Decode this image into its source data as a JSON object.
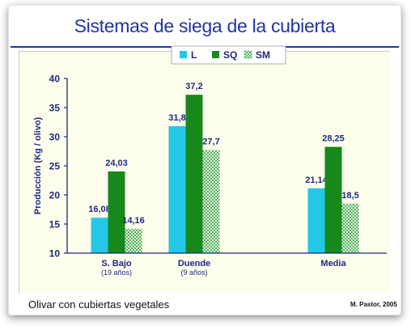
{
  "title": "Sistemas de siega de la cubierta",
  "footer_caption": "Olivar con cubiertas vegetales",
  "footer_credit": "M. Pastor, 2005",
  "colors": {
    "L": "#22c8e6",
    "SQ": "#16891a",
    "SM": "#7fcf84",
    "axis": "#1e2a80",
    "labels": "#1e2a80",
    "panel": "#fdfdec"
  },
  "chart_data": {
    "type": "bar",
    "title": "Sistemas de siega de la cubierta",
    "ylabel": "Producción (Kg / olivo)",
    "xlabel": "",
    "ylim": [
      10,
      40
    ],
    "yticks": [
      10,
      15,
      20,
      25,
      30,
      35,
      40
    ],
    "grid": false,
    "legend_position": "top-right",
    "categories": [
      {
        "label": "S. Bajo",
        "sublabel": "(19 años)"
      },
      {
        "label": "Duende",
        "sublabel": "(9 años)"
      },
      {
        "label": "Media",
        "sublabel": ""
      }
    ],
    "series": [
      {
        "name": "L",
        "pattern": "solid",
        "values": [
          16.08,
          31.8,
          21.14
        ],
        "value_labels": [
          "16,08",
          "31,8",
          "21,14"
        ]
      },
      {
        "name": "SQ",
        "pattern": "solid",
        "values": [
          24.03,
          37.2,
          28.25
        ],
        "value_labels": [
          "24,03",
          "37,2",
          "28,25"
        ]
      },
      {
        "name": "SM",
        "pattern": "checker",
        "values": [
          14.16,
          27.7,
          18.5
        ],
        "value_labels": [
          "14,16",
          "27,7",
          "18,5"
        ]
      }
    ]
  }
}
